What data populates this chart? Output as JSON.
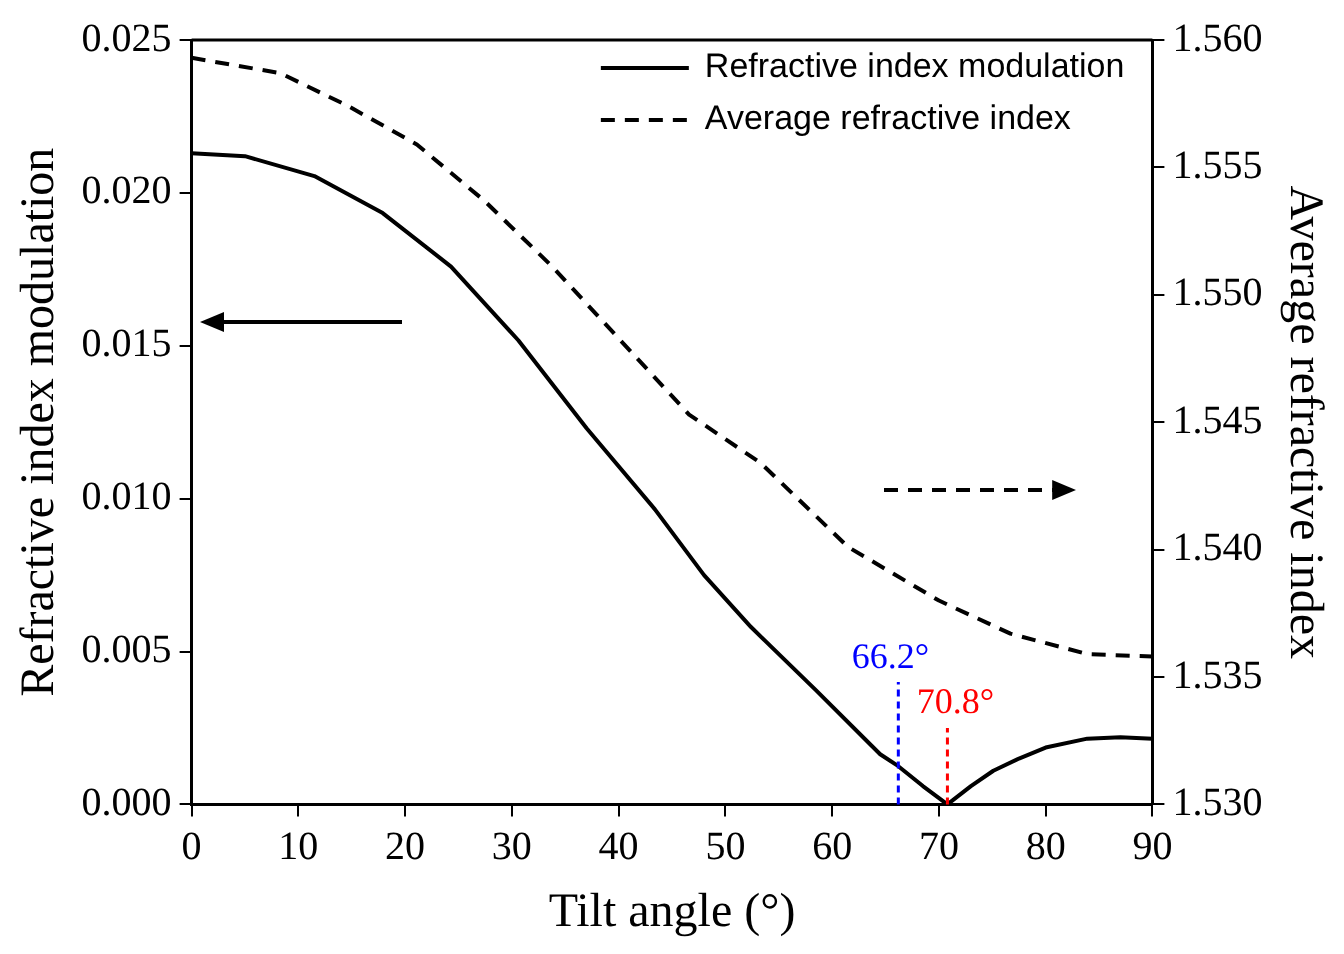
{
  "chart_data": {
    "type": "line",
    "xlabel": "Tilt angle (°)",
    "ylabel": "Refractive index modulation",
    "y2label": "Average refractive index",
    "xlim": [
      0,
      90
    ],
    "xticks": [
      0,
      10,
      20,
      30,
      40,
      50,
      60,
      70,
      80,
      90
    ],
    "ylim": [
      0,
      0.025
    ],
    "yticks": [
      {
        "value": 0,
        "label": "0.000"
      },
      {
        "value": 0.005,
        "label": "0.005"
      },
      {
        "value": 0.01,
        "label": "0.010"
      },
      {
        "value": 0.015,
        "label": "0.015"
      },
      {
        "value": 0.02,
        "label": "0.020"
      },
      {
        "value": 0.025,
        "label": "0.025"
      }
    ],
    "y2lim": [
      1.53,
      1.56
    ],
    "y2ticks": [
      {
        "value": 1.53,
        "label": "1.530"
      },
      {
        "value": 1.535,
        "label": "1.535"
      },
      {
        "value": 1.54,
        "label": "1.540"
      },
      {
        "value": 1.545,
        "label": "1.545"
      },
      {
        "value": 1.55,
        "label": "1.550"
      },
      {
        "value": 1.555,
        "label": "1.555"
      },
      {
        "value": 1.56,
        "label": "1.560"
      }
    ],
    "grid": false,
    "legend": "top right",
    "marker": "none",
    "series": [
      {
        "name": "Refractive index modulation",
        "color": "#000000",
        "line_style": "solid",
        "x": [
          0,
          5,
          11.5,
          17.9,
          24.3,
          30.6,
          37.0,
          43.4,
          48,
          52.4,
          58.5,
          64.5,
          66.2,
          68.5,
          70.8,
          73,
          75.1,
          77.5,
          80,
          83.9,
          87,
          90
        ],
        "values": [
          0.0213,
          0.0212,
          0.02055,
          0.01934,
          0.01759,
          0.01518,
          0.0123,
          0.00965,
          0.0075,
          0.0058,
          0.00373,
          0.00164,
          0.00125,
          0.0006,
          0,
          0.0006,
          0.0011,
          0.0015,
          0.00186,
          0.00215,
          0.0022,
          0.00215
        ]
      },
      {
        "name": "Average refractive index",
        "color": "#000000",
        "line_style": "dashed",
        "axis": "y2",
        "x": [
          0,
          8.3,
          14.7,
          21.1,
          27.4,
          33.8,
          40.2,
          46.6,
          53.3,
          61.5,
          70,
          76.7,
          83.9,
          90
        ],
        "values": [
          1.5593,
          1.5587,
          1.5574,
          1.5559,
          1.5537,
          1.5511,
          1.5482,
          1.5453,
          1.5434,
          1.5401,
          1.538,
          1.5367,
          1.5359,
          1.5358
        ]
      }
    ],
    "ref_lines": [
      {
        "axis": "x",
        "value": 66.2,
        "label": "66.2°",
        "color": "#0000ff",
        "line_style": "dashed"
      },
      {
        "axis": "x",
        "value": 70.8,
        "label": "70.8°",
        "color": "#ff0000",
        "line_style": "dashed"
      }
    ]
  }
}
